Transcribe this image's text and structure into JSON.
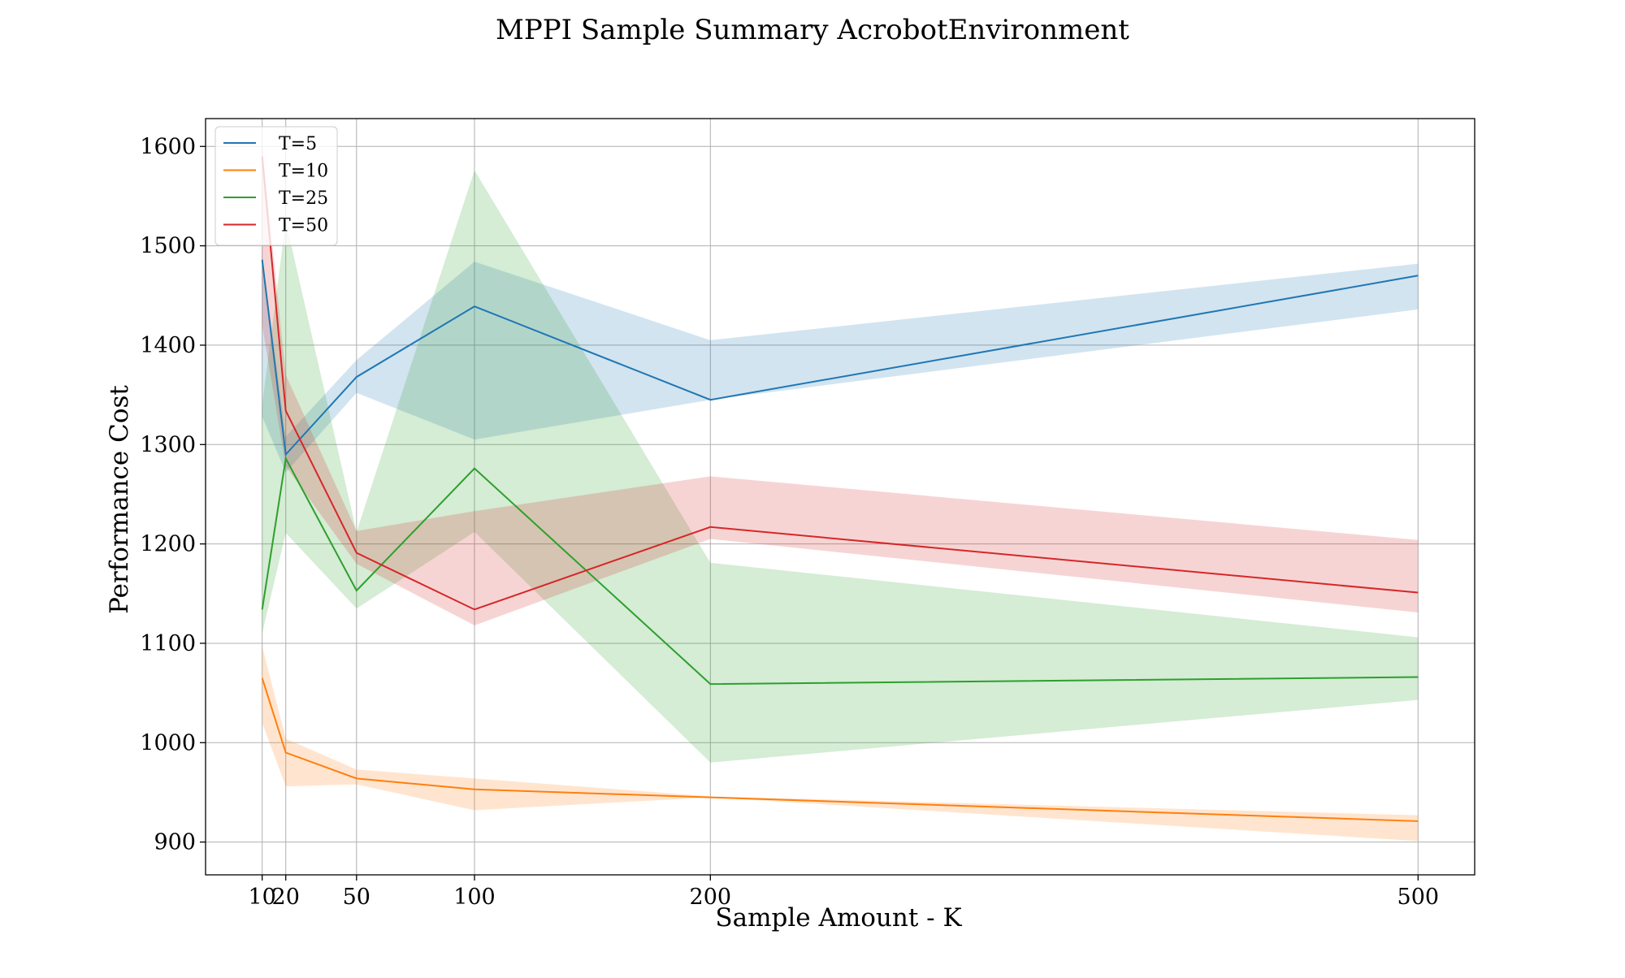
{
  "chart_data": {
    "type": "line",
    "title": "MPPI Sample Summary AcrobotEnvironment",
    "xlabel": "Sample Amount - K",
    "ylabel": "Performance Cost",
    "x": [
      10,
      20,
      50,
      100,
      200,
      500
    ],
    "x_ticks": [
      10,
      20,
      50,
      100,
      200,
      500
    ],
    "y_ticks": [
      900,
      1000,
      1100,
      1200,
      1300,
      1400,
      1500,
      1600
    ],
    "xlim": [
      -14,
      524
    ],
    "ylim": [
      867,
      1628
    ],
    "grid": true,
    "legend_position": "upper-left",
    "series": [
      {
        "name": "T=5",
        "color": "#1f77b4",
        "values": [
          1486,
          1290,
          1368,
          1439,
          1345,
          1470
        ],
        "band_low": [
          1328,
          1272,
          1352,
          1305,
          1345,
          1436
        ],
        "band_high": [
          1490,
          1308,
          1385,
          1484,
          1405,
          1482
        ]
      },
      {
        "name": "T=10",
        "color": "#ff7f0e",
        "values": [
          1065,
          990,
          964,
          953,
          945,
          921
        ],
        "band_low": [
          1020,
          956,
          958,
          932,
          945,
          901
        ],
        "band_high": [
          1097,
          1004,
          973,
          964,
          946,
          927
        ]
      },
      {
        "name": "T=25",
        "color": "#2ca02c",
        "values": [
          1134,
          1286,
          1153,
          1276,
          1059,
          1066
        ],
        "band_low": [
          1110,
          1211,
          1135,
          1212,
          980,
          1043
        ],
        "band_high": [
          1340,
          1525,
          1212,
          1576,
          1181,
          1106
        ]
      },
      {
        "name": "T=50",
        "color": "#d62728",
        "values": [
          1590,
          1334,
          1191,
          1134,
          1217,
          1151
        ],
        "band_low": [
          1420,
          1278,
          1180,
          1118,
          1205,
          1131
        ],
        "band_high": [
          1600,
          1370,
          1213,
          1233,
          1268,
          1204
        ]
      }
    ]
  }
}
